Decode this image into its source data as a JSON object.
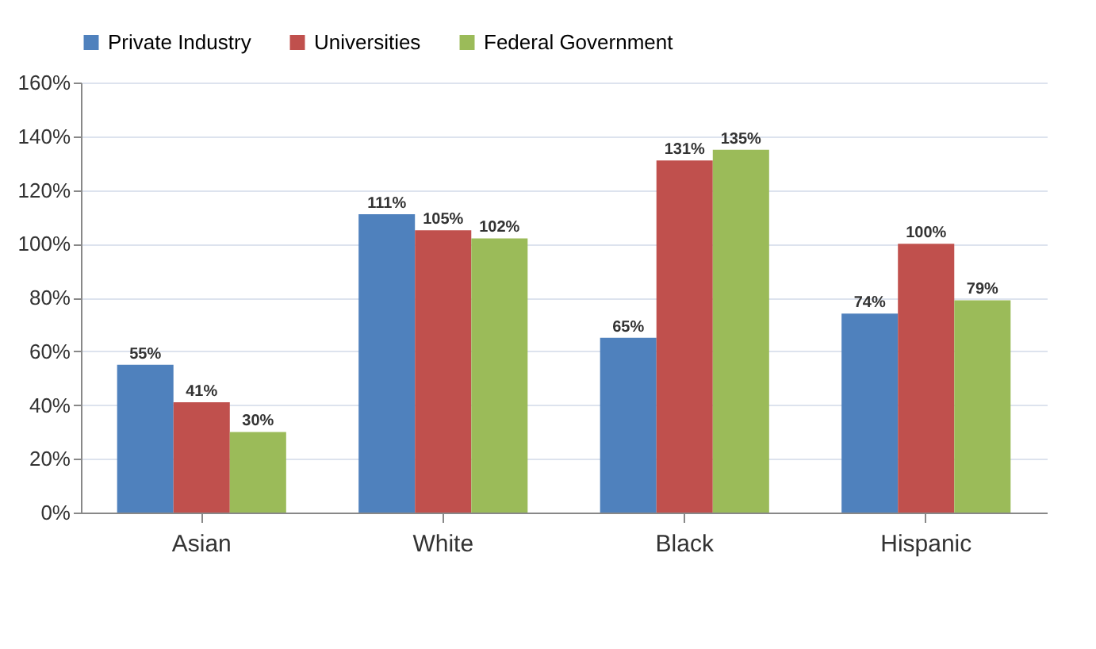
{
  "chart_data": {
    "type": "bar",
    "categories": [
      "Asian",
      "White",
      "Black",
      "Hispanic"
    ],
    "series": [
      {
        "name": "Private Industry",
        "color": "#4f81bd",
        "values": [
          55,
          111,
          65,
          74
        ],
        "value_labels": [
          "55%",
          "111%",
          "65%",
          "74%"
        ]
      },
      {
        "name": "Universities",
        "color": "#c0504d",
        "values": [
          41,
          105,
          131,
          100
        ],
        "value_labels": [
          "41%",
          "105%",
          "131%",
          "100%"
        ]
      },
      {
        "name": "Federal Government",
        "color": "#9bbb59",
        "values": [
          30,
          102,
          135,
          79
        ],
        "value_labels": [
          "30%",
          "102%",
          "135%",
          "79%"
        ]
      }
    ],
    "ylim": [
      0,
      160
    ],
    "yticks": [
      {
        "value": 0,
        "label": "0%"
      },
      {
        "value": 20,
        "label": "20%"
      },
      {
        "value": 40,
        "label": "40%"
      },
      {
        "value": 60,
        "label": "60%"
      },
      {
        "value": 80,
        "label": "80%"
      },
      {
        "value": 100,
        "label": "100%"
      },
      {
        "value": 120,
        "label": "120%"
      },
      {
        "value": 140,
        "label": "140%"
      },
      {
        "value": 160,
        "label": "160%"
      }
    ],
    "grid": "y",
    "legend": "top"
  }
}
